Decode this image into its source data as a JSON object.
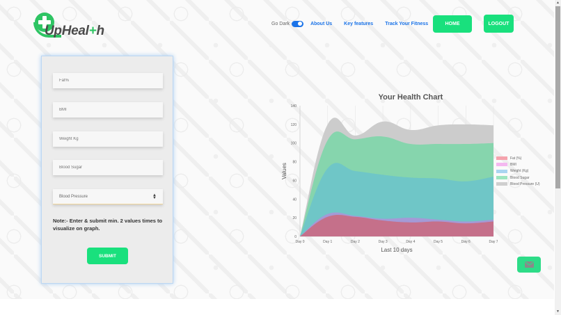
{
  "header": {
    "logo_text_pre": "UpHeal",
    "logo_text_plus": "+",
    "logo_text_post": "h",
    "dark_toggle_label": "Go Dark",
    "dark_toggle_on": true,
    "nav_links": [
      "About Us",
      "Key features",
      "Track Your Fitness"
    ],
    "home_label": "HOME",
    "logout_label": "LOGOUT"
  },
  "form": {
    "fields": [
      {
        "placeholder": "Fat%"
      },
      {
        "placeholder": "BMI"
      },
      {
        "placeholder": "Weight Kg"
      },
      {
        "placeholder": "Blood Sugar"
      }
    ],
    "select": {
      "value": "Blood Pressure",
      "icon": "updown-arrows-icon"
    },
    "note": "Note:- Enter & submit min. 2 values times to visualize on graph.",
    "submit_label": "SUBMIT"
  },
  "colors": {
    "brand_green": "#19e07d",
    "link_blue": "#1a73e8",
    "fat": "#c5708a",
    "bmi": "#a49ad6",
    "weight": "#6fc6c7",
    "sugar": "#86d5ad",
    "bp": "#cccccc"
  },
  "chart_data": {
    "type": "area",
    "stacked": true,
    "title": "Your Health Chart",
    "xlabel": "Last 10 days",
    "ylabel": "Values",
    "categories": [
      "Day 0",
      "Day 1",
      "Day 2",
      "Day 3",
      "Day 4",
      "Day 5",
      "Day 6",
      "Day 7"
    ],
    "yticks": [
      0,
      20,
      40,
      60,
      80,
      100,
      120,
      140
    ],
    "ylim": [
      0,
      140
    ],
    "legend_position": "right",
    "series": [
      {
        "name": "Fat (%)",
        "color": "#f5a3ad",
        "values": [
          0,
          21,
          21,
          17,
          15,
          16,
          14,
          16
        ]
      },
      {
        "name": "BMI",
        "color": "#f4b8f0",
        "values": [
          0,
          3,
          1,
          2,
          5,
          2,
          2,
          2
        ]
      },
      {
        "name": "Weight (Kg)",
        "color": "#a9d5f0",
        "values": [
          0,
          49,
          48,
          47,
          43,
          44,
          43,
          46
        ]
      },
      {
        "name": "Blood Sugar",
        "color": "#9ee5bf",
        "values": [
          0,
          30,
          34,
          41,
          36,
          37,
          40,
          36
        ]
      },
      {
        "name": "Blood Pressure (U)",
        "color": "#cfcfcf",
        "values": [
          0,
          17,
          4,
          16,
          15,
          20,
          21,
          19
        ]
      }
    ]
  },
  "mail_button": {
    "icon": "envelope-icon"
  }
}
